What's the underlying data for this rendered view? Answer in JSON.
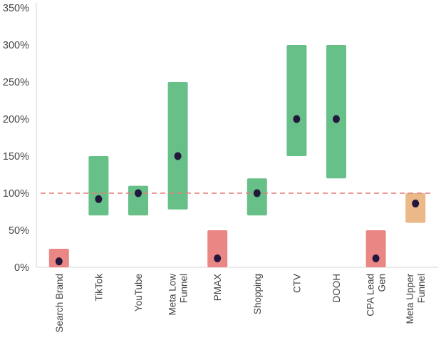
{
  "chart_data": {
    "type": "range-bar with point",
    "title": "",
    "xlabel": "",
    "ylabel": "",
    "ylim": [
      0,
      350
    ],
    "yticks": [
      "0%",
      "50%",
      "100%",
      "150%",
      "200%",
      "250%",
      "300%",
      "350%"
    ],
    "ytick_values": [
      0,
      50,
      100,
      150,
      200,
      250,
      300,
      350
    ],
    "grid": false,
    "reference_line": {
      "value": 100,
      "style": "dashed",
      "color": "#e57f7c"
    },
    "categories": [
      [
        "Search Brand"
      ],
      [
        "TikTok"
      ],
      [
        "YouTube"
      ],
      [
        "Meta Low",
        "Funnel"
      ],
      [
        "PMAX"
      ],
      [
        "Shopping"
      ],
      [
        "CTV"
      ],
      [
        "DOOH"
      ],
      [
        "CPA Lead",
        "Gen"
      ],
      [
        "Meta Upper",
        "Funnel"
      ]
    ],
    "ranges": [
      {
        "low": 0,
        "high": 25,
        "point": 8,
        "status": "red"
      },
      {
        "low": 70,
        "high": 150,
        "point": 92,
        "status": "green"
      },
      {
        "low": 70,
        "high": 110,
        "point": 100,
        "status": "green"
      },
      {
        "low": 78,
        "high": 250,
        "point": 150,
        "status": "green"
      },
      {
        "low": 0,
        "high": 50,
        "point": 12,
        "status": "red"
      },
      {
        "low": 70,
        "high": 120,
        "point": 100,
        "status": "green"
      },
      {
        "low": 150,
        "high": 300,
        "point": 200,
        "status": "green"
      },
      {
        "low": 120,
        "high": 300,
        "point": 200,
        "status": "green"
      },
      {
        "low": 0,
        "high": 50,
        "point": 12,
        "status": "red"
      },
      {
        "low": 60,
        "high": 100,
        "point": 86,
        "status": "orange"
      }
    ],
    "colors": {
      "green": "#66c087",
      "red": "#ea8785",
      "orange": "#ebb888",
      "point": "#23173e",
      "axis": "#e3e3e3"
    }
  }
}
